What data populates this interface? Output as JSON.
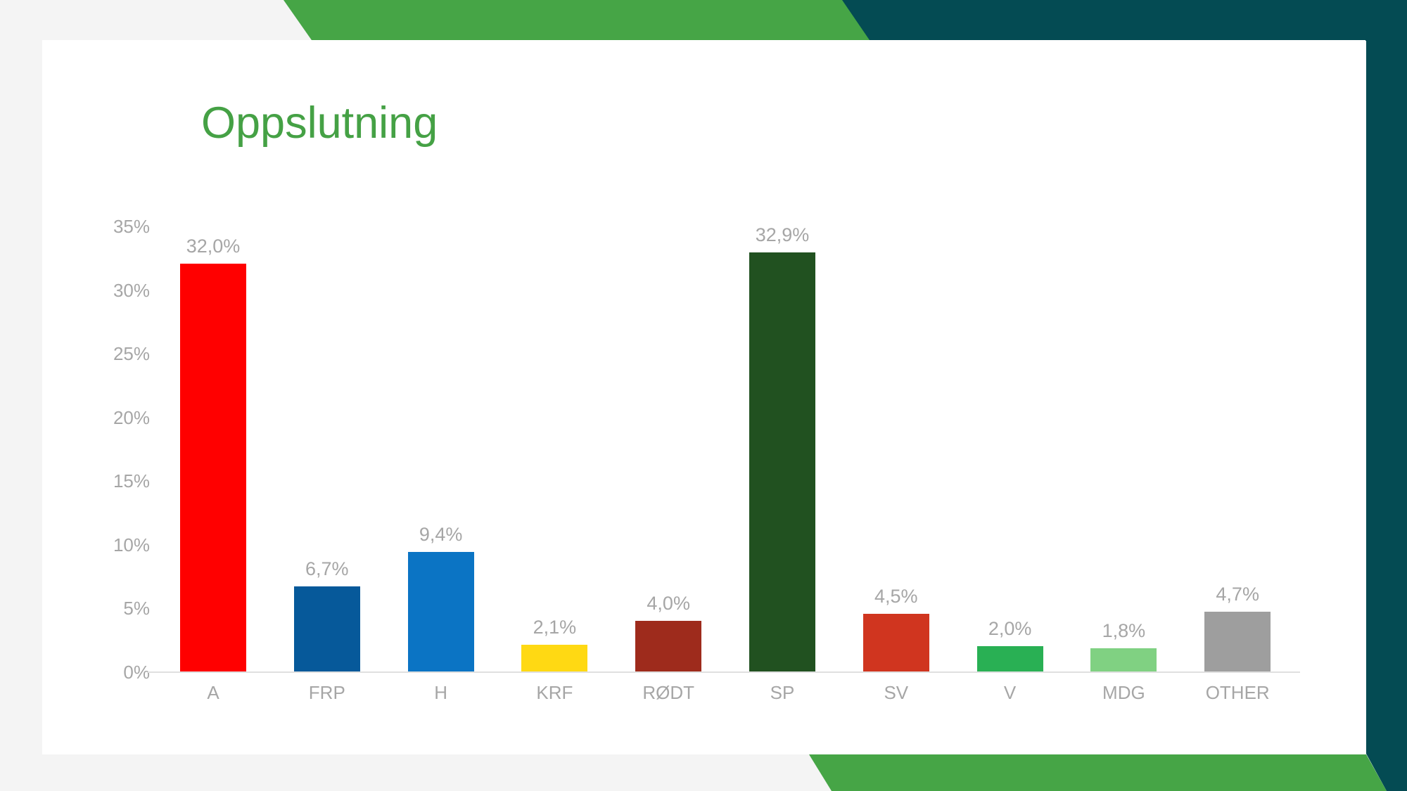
{
  "title": {
    "text": "Oppslutning",
    "color": "#45a145"
  },
  "decor": {
    "top_band_color": "#46a546",
    "bottom_band_color": "#46a546",
    "corner_color": "#044b53",
    "background_color": "#f4f4f4",
    "card_color": "#ffffff"
  },
  "chart_data": {
    "type": "bar",
    "title": "Oppslutning",
    "categories": [
      "A",
      "FRP",
      "H",
      "KRF",
      "RØDT",
      "SP",
      "SV",
      "V",
      "MDG",
      "OTHER"
    ],
    "values": [
      32.0,
      6.7,
      9.4,
      2.1,
      4.0,
      32.9,
      4.5,
      2.0,
      1.8,
      4.7
    ],
    "value_labels": [
      "32,0%",
      "6,7%",
      "9,4%",
      "2,1%",
      "4,0%",
      "32,9%",
      "4,5%",
      "2,0%",
      "1,8%",
      "4,7%"
    ],
    "bar_colors": [
      "#ff0000",
      "#06599a",
      "#0b74c4",
      "#ffd913",
      "#9e2b1c",
      "#215120",
      "#d0351f",
      "#29b054",
      "#80d182",
      "#9e9e9e"
    ],
    "y_ticks": [
      {
        "label": "35%",
        "value": 35
      },
      {
        "label": "30%",
        "value": 30
      },
      {
        "label": "25%",
        "value": 25
      },
      {
        "label": "20%",
        "value": 20
      },
      {
        "label": "15%",
        "value": 15
      },
      {
        "label": "10%",
        "value": 10
      },
      {
        "label": "5%",
        "value": 5
      },
      {
        "label": "0%",
        "value": 0
      }
    ],
    "ylim": [
      0,
      35
    ],
    "xlabel": "",
    "ylabel": "",
    "grid": false,
    "legend": "none",
    "axis_text_color": "#a6a6a6",
    "axis_line_color": "#e0e0e0"
  }
}
